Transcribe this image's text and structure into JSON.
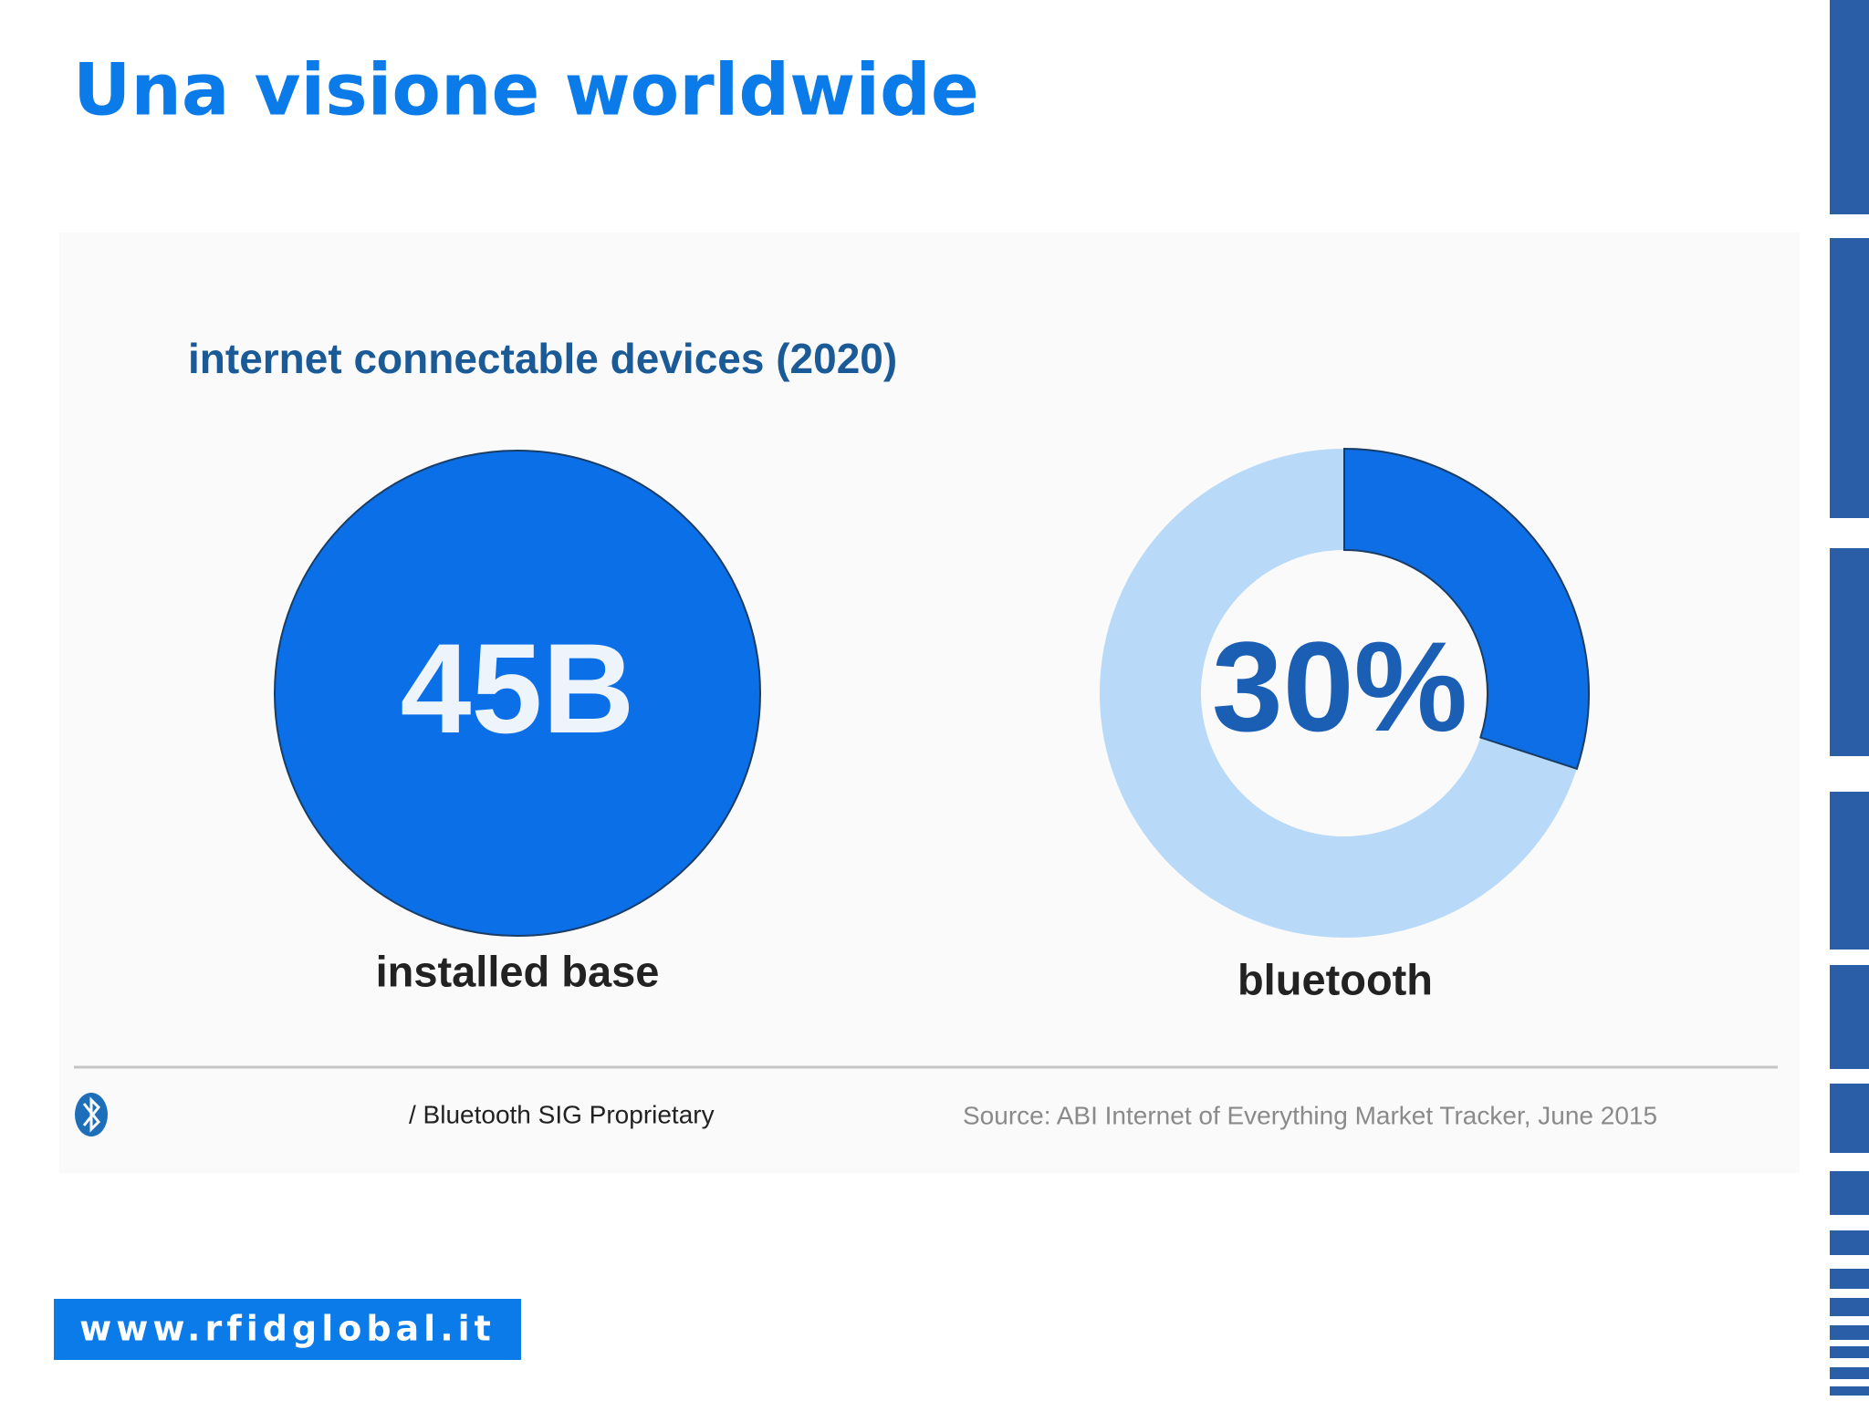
{
  "slide": {
    "title": "Una visione worldwide",
    "figure_title": "internet connectable devices (2020)",
    "installed_base": {
      "value_label": "45B",
      "label": "installed base"
    },
    "footer_proprietary": "/ Bluetooth SIG Proprietary",
    "footer_source": "Source: ABI Internet of Everything Market Tracker, June 2015",
    "url": "www.rfidglobal.it"
  },
  "chart_data": {
    "type": "donut",
    "categories": [
      "bluetooth"
    ],
    "values": [
      30
    ],
    "value_labels": [
      "30%"
    ],
    "color": "#0d6ee6",
    "track_color": "#b9d9f8"
  }
}
